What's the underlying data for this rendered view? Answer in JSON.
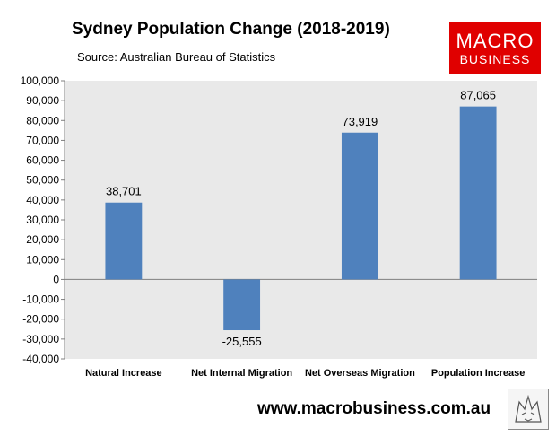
{
  "header": {
    "title": "Sydney Population Change (2018-2019)",
    "source": "Source: Australian Bureau of Statistics"
  },
  "logo": {
    "line1": "MACRO",
    "line2": "BUSINESS",
    "color": "#e00000"
  },
  "footer": {
    "url": "www.macrobusiness.com.au",
    "mascot_icon": "wolf-sketch-icon"
  },
  "chart_data": {
    "type": "bar",
    "title": "Sydney Population Change (2018-2019)",
    "categories": [
      "Natural Increase",
      "Net Internal Migration",
      "Net Overseas Migration",
      "Population Increase"
    ],
    "values": [
      38701,
      -25555,
      73919,
      87065
    ],
    "data_labels": [
      "38,701",
      "-25,555",
      "73,919",
      "87,065"
    ],
    "ylim": [
      -40000,
      100000
    ],
    "yticks": [
      100000,
      90000,
      80000,
      70000,
      60000,
      50000,
      40000,
      30000,
      20000,
      10000,
      0,
      -10000,
      -20000,
      -30000,
      -40000
    ],
    "ytick_labels": [
      "100,000",
      "90,000",
      "80,000",
      "70,000",
      "60,000",
      "50,000",
      "40,000",
      "30,000",
      "20,000",
      "10,000",
      "0",
      "-10,000",
      "-20,000",
      "-30,000",
      "-40,000"
    ],
    "xlabel": "",
    "ylabel": "",
    "grid": false,
    "bar_color": "#4f81bd",
    "background": "#e9e9e9"
  }
}
